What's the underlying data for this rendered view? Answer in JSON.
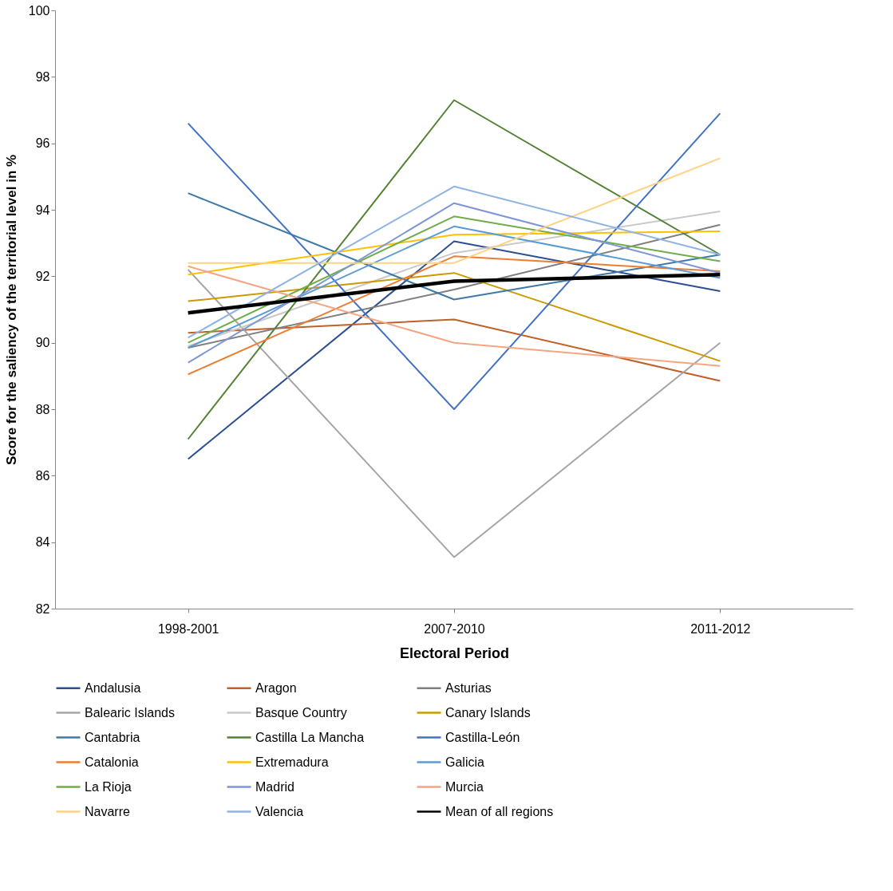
{
  "chart_data": {
    "type": "line",
    "xlabel": "Electoral Period",
    "ylabel": "Score for the saliency of the territorial level in %",
    "categories": [
      "1998-2001",
      "2007-2010",
      "2011-2012"
    ],
    "ylim": [
      82,
      100
    ],
    "yticks": [
      82,
      84,
      86,
      88,
      90,
      92,
      94,
      96,
      98,
      100
    ],
    "grid": false,
    "legend": "bottom",
    "marker": "none",
    "series": [
      {
        "name": "Andalusia",
        "color": "#2e4f8f",
        "values": [
          86.5,
          93.05,
          91.55
        ]
      },
      {
        "name": "Aragon",
        "color": "#c0602a",
        "values": [
          90.3,
          90.7,
          88.85
        ]
      },
      {
        "name": "Asturias",
        "color": "#7f7f7f",
        "values": [
          89.85,
          91.6,
          93.55
        ]
      },
      {
        "name": "Balearic Islands",
        "color": "#a5a5a5",
        "values": [
          92.2,
          83.55,
          90.0
        ]
      },
      {
        "name": "Basque Country",
        "color": "#c9c9c9",
        "values": [
          89.9,
          92.7,
          93.95
        ]
      },
      {
        "name": "Canary Islands",
        "color": "#cc9900",
        "values": [
          91.25,
          92.1,
          89.45
        ]
      },
      {
        "name": "Cantabria",
        "color": "#3c78a8",
        "values": [
          94.5,
          91.3,
          92.65
        ]
      },
      {
        "name": "Castilla La Mancha",
        "color": "#548235",
        "values": [
          87.1,
          97.3,
          92.65
        ]
      },
      {
        "name": "Castilla-León",
        "color": "#4472c4",
        "values": [
          96.6,
          88.0,
          96.9
        ]
      },
      {
        "name": "Catalonia",
        "color": "#ed7d31",
        "values": [
          89.05,
          92.6,
          92.15
        ]
      },
      {
        "name": "Extremadura",
        "color": "#ffc000",
        "values": [
          92.05,
          93.25,
          93.35
        ]
      },
      {
        "name": "Galicia",
        "color": "#5b9bd5",
        "values": [
          89.85,
          93.5,
          91.95
        ]
      },
      {
        "name": "La Rioja",
        "color": "#70ad47",
        "values": [
          90.0,
          93.8,
          92.45
        ]
      },
      {
        "name": "Madrid",
        "color": "#7f96d6",
        "values": [
          89.4,
          94.2,
          92.1
        ]
      },
      {
        "name": "Murcia",
        "color": "#f4a582",
        "values": [
          92.3,
          90.0,
          89.3
        ]
      },
      {
        "name": "Navarre",
        "color": "#ffd27f",
        "values": [
          92.4,
          92.4,
          95.55
        ]
      },
      {
        "name": "Valencia",
        "color": "#8fb4e3",
        "values": [
          90.15,
          94.7,
          92.65
        ]
      },
      {
        "name": "Mean of all regions",
        "color": "#000000",
        "values": [
          90.9,
          91.85,
          92.05
        ]
      }
    ]
  }
}
